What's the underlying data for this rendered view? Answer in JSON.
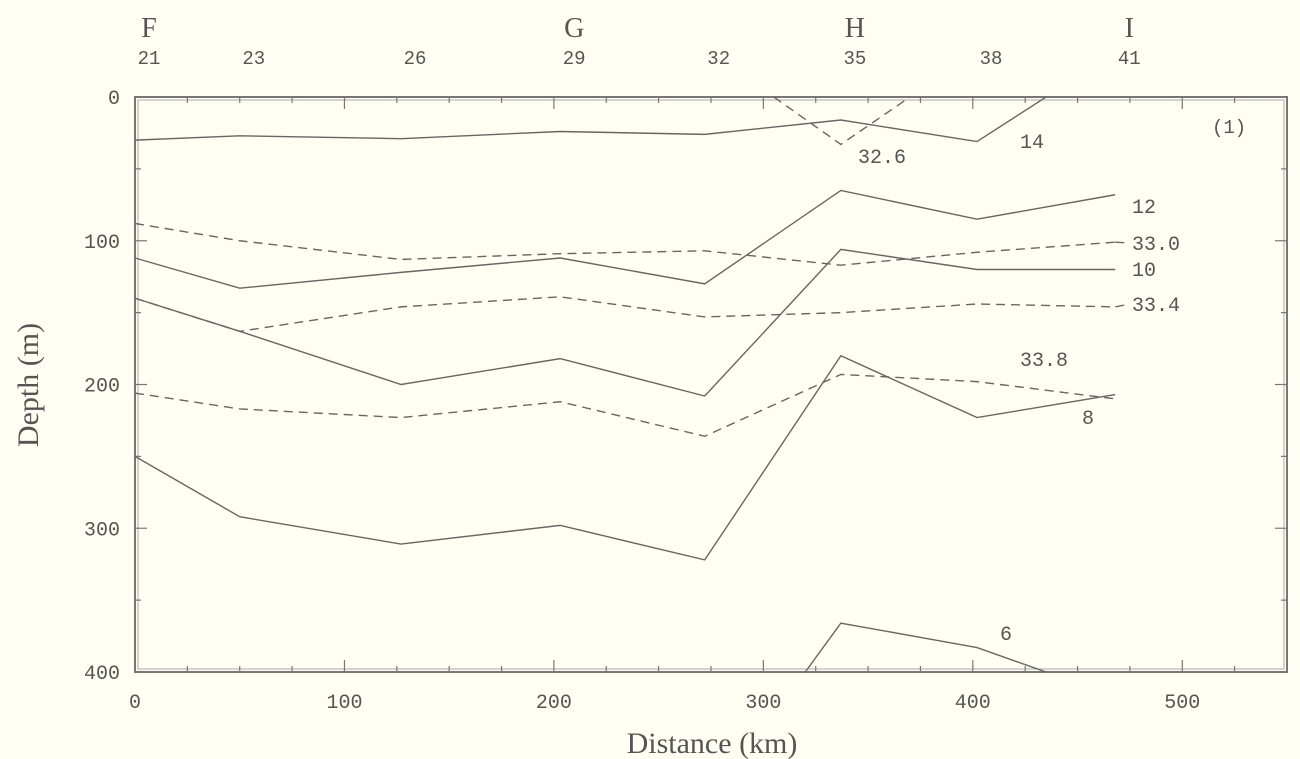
{
  "chart_data": {
    "type": "line",
    "title": "",
    "panel_label": "(1)",
    "xlabel": "Distance (km)",
    "ylabel": "Depth (m)",
    "xlim": [
      0,
      550
    ],
    "ylim": [
      0,
      400
    ],
    "y_inverted": true,
    "x_ticks": [
      "0",
      "100",
      "200",
      "300",
      "400",
      "500"
    ],
    "y_ticks": [
      "0",
      "100",
      "200",
      "300",
      "400"
    ],
    "grid": false,
    "stations": [
      {
        "label": "21",
        "x": 0
      },
      {
        "label": "23",
        "x": 50
      },
      {
        "label": "26",
        "x": 127
      },
      {
        "label": "29",
        "x": 203
      },
      {
        "label": "32",
        "x": 272
      },
      {
        "label": "35",
        "x": 337
      },
      {
        "label": "38",
        "x": 402
      },
      {
        "label": "41",
        "x": 468
      }
    ],
    "section_markers": [
      {
        "label": "F",
        "x": 0
      },
      {
        "label": "G",
        "x": 203
      },
      {
        "label": "H",
        "x": 337
      },
      {
        "label": "I",
        "x": 468
      }
    ],
    "series": [
      {
        "name": "14",
        "style": "solid",
        "x": [
          0,
          50,
          127,
          203,
          272,
          337,
          402,
          435
        ],
        "y": [
          30,
          27,
          29,
          24,
          26,
          16,
          31,
          0
        ]
      },
      {
        "name": "12",
        "style": "solid",
        "x": [
          0,
          50,
          127,
          203,
          272,
          337,
          402,
          468
        ],
        "y": [
          112,
          133,
          122,
          112,
          130,
          65,
          85,
          68
        ]
      },
      {
        "name": "10",
        "style": "solid",
        "x": [
          0,
          50,
          127,
          203,
          272,
          337,
          402,
          468
        ],
        "y": [
          140,
          163,
          200,
          182,
          208,
          106,
          120,
          120
        ]
      },
      {
        "name": "8",
        "style": "solid",
        "x": [
          0,
          50,
          127,
          203,
          272,
          337,
          402,
          468
        ],
        "y": [
          250,
          292,
          311,
          298,
          322,
          180,
          223,
          207
        ]
      },
      {
        "name": "6",
        "style": "solid",
        "x": [
          320,
          337,
          402,
          435
        ],
        "y": [
          400,
          366,
          383,
          400
        ]
      },
      {
        "name": "32.6",
        "style": "dashed",
        "x": [
          305,
          337,
          370
        ],
        "y": [
          0,
          33,
          0
        ]
      },
      {
        "name": "33.0",
        "style": "dashed",
        "x": [
          0,
          50,
          127,
          203,
          272,
          337,
          402,
          468
        ],
        "y": [
          88,
          100,
          113,
          109,
          107,
          117,
          108,
          101
        ]
      },
      {
        "name": "33.4",
        "style": "dashed",
        "x": [
          0,
          50,
          127,
          203,
          272,
          337,
          402,
          468
        ],
        "y": [
          140,
          163,
          146,
          139,
          153,
          150,
          144,
          146
        ]
      },
      {
        "name": "33.8",
        "style": "dashed",
        "x": [
          0,
          50,
          127,
          203,
          272,
          337,
          402,
          468
        ],
        "y": [
          206,
          217,
          223,
          212,
          236,
          193,
          198,
          210
        ]
      }
    ]
  }
}
